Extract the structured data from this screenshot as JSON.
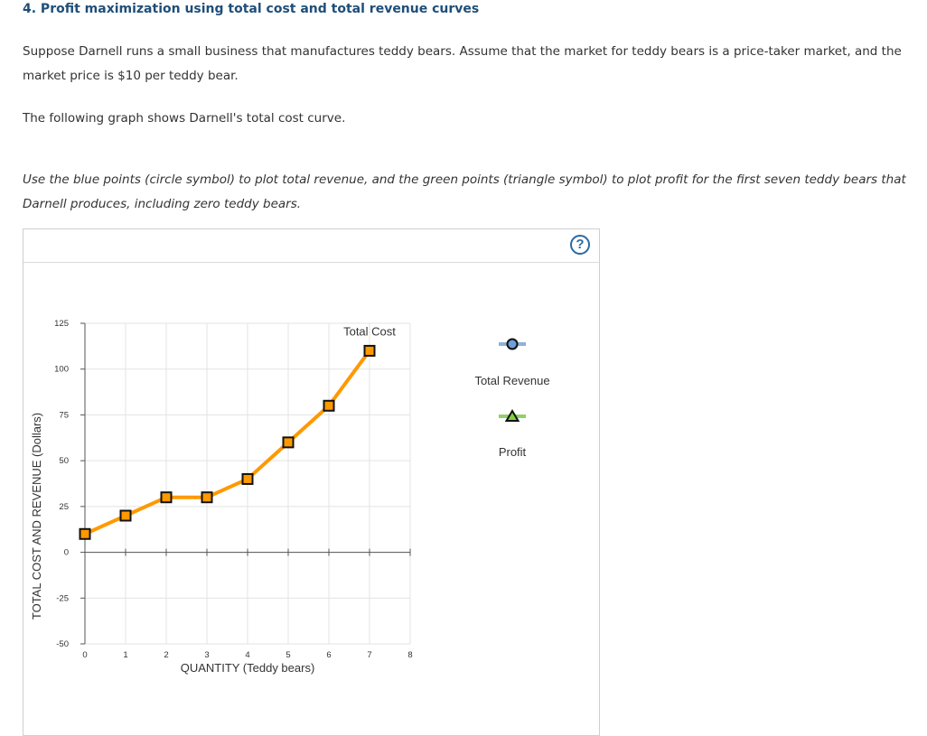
{
  "question": {
    "title": "4. Profit maximization using total cost and total revenue curves",
    "paragraph1": "Suppose Darnell runs a small business that manufactures teddy bears. Assume that the market for teddy bears is a price-taker market, and the market price is $10 per teddy bear.",
    "paragraph2": "The following graph shows Darnell's total cost curve.",
    "instruction": "Use the blue points (circle symbol) to plot total revenue, and the green points (triangle symbol) to plot profit for the first seven teddy bears that Darnell produces, including zero teddy bears."
  },
  "panel": {
    "help_label": "?",
    "help_icon": "question-circle-icon"
  },
  "legend": {
    "total_revenue": {
      "label": "Total Revenue",
      "line_color": "#8fb1d9",
      "marker_fill": "#6f9fd8",
      "marker": "circle"
    },
    "profit": {
      "label": "Profit",
      "line_color": "#8fd16a",
      "marker_fill": "#7fd13b",
      "marker": "triangle"
    }
  },
  "chart_data": {
    "type": "line",
    "xlabel": "QUANTITY (Teddy bears)",
    "ylabel": "TOTAL COST AND REVENUE (Dollars)",
    "xlim": [
      0,
      8
    ],
    "ylim": [
      -50,
      125
    ],
    "x_ticks": [
      0,
      1,
      2,
      3,
      4,
      5,
      6,
      7,
      8
    ],
    "y_ticks": [
      -50,
      -25,
      0,
      25,
      50,
      75,
      100,
      125
    ],
    "grid": true,
    "series": [
      {
        "name": "Total Cost",
        "color": "#ff9900",
        "marker": "square",
        "marker_fill": "#ff9900",
        "x": [
          0,
          1,
          2,
          3,
          4,
          5,
          6,
          7
        ],
        "values": [
          10,
          20,
          30,
          30,
          40,
          60,
          80,
          110
        ]
      }
    ]
  }
}
